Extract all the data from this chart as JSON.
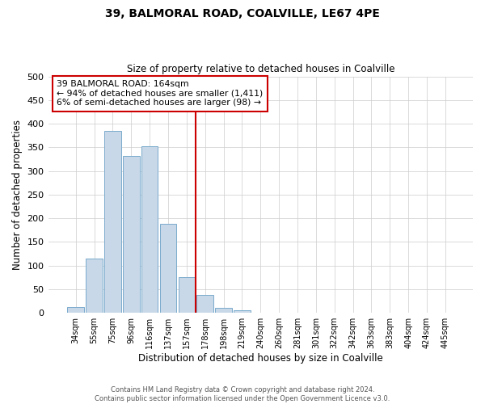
{
  "title": "39, BALMORAL ROAD, COALVILLE, LE67 4PE",
  "subtitle": "Size of property relative to detached houses in Coalville",
  "xlabel": "Distribution of detached houses by size in Coalville",
  "ylabel": "Number of detached properties",
  "bar_labels": [
    "34sqm",
    "55sqm",
    "75sqm",
    "96sqm",
    "116sqm",
    "137sqm",
    "157sqm",
    "178sqm",
    "198sqm",
    "219sqm",
    "240sqm",
    "260sqm",
    "281sqm",
    "301sqm",
    "322sqm",
    "342sqm",
    "363sqm",
    "383sqm",
    "404sqm",
    "424sqm",
    "445sqm"
  ],
  "bar_values": [
    13,
    115,
    385,
    332,
    352,
    188,
    76,
    38,
    10,
    5,
    1,
    0,
    0,
    0,
    0,
    0,
    1,
    0,
    0,
    0,
    1
  ],
  "bar_color": "#c8d8e8",
  "bar_edge_color": "#7aabcc",
  "vline_color": "#cc0000",
  "annotation_title": "39 BALMORAL ROAD: 164sqm",
  "annotation_line1": "← 94% of detached houses are smaller (1,411)",
  "annotation_line2": "6% of semi-detached houses are larger (98) →",
  "annotation_box_color": "#cc0000",
  "ylim": [
    0,
    500
  ],
  "yticks": [
    0,
    50,
    100,
    150,
    200,
    250,
    300,
    350,
    400,
    450,
    500
  ],
  "footer1": "Contains HM Land Registry data © Crown copyright and database right 2024.",
  "footer2": "Contains public sector information licensed under the Open Government Licence v3.0.",
  "bg_color": "#ffffff"
}
